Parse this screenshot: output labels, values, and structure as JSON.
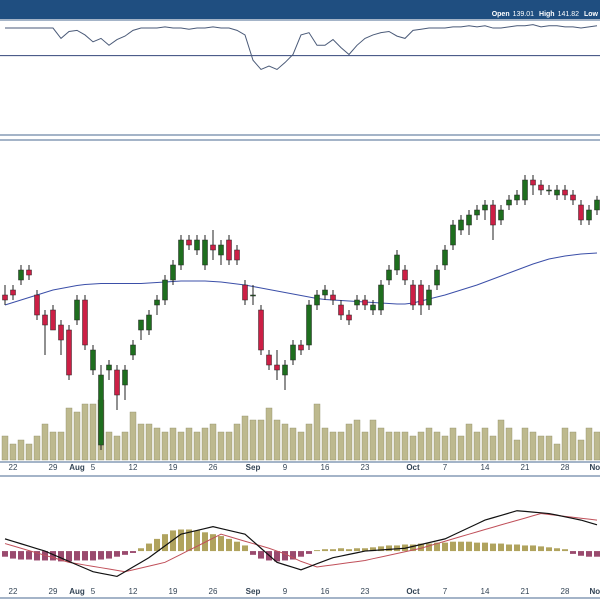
{
  "header": {
    "items": [
      {
        "label": "Open",
        "value": "139.01"
      },
      {
        "label": "High",
        "value": "141.82"
      },
      {
        "label": "Low"
      }
    ]
  },
  "chart_data": [
    {
      "type": "line",
      "color": "#4a5a78",
      "ylim": [
        0,
        100
      ],
      "reference": 69,
      "values": [
        93,
        93,
        93,
        93,
        93,
        93,
        93,
        84,
        90,
        91,
        87,
        81,
        84,
        78,
        83,
        86,
        91,
        93,
        93,
        93,
        94,
        93,
        93,
        92,
        93,
        93,
        94,
        93,
        93,
        91,
        87,
        65,
        57,
        60,
        57,
        63,
        70,
        87,
        89,
        78,
        78,
        83,
        76,
        70,
        78,
        84,
        87,
        89,
        90,
        86,
        84,
        91,
        92,
        93,
        93,
        93,
        94,
        94,
        95,
        94,
        95,
        93,
        93,
        94,
        95,
        95,
        96,
        94,
        95,
        95,
        94,
        94,
        93,
        94,
        95
      ]
    },
    {
      "type": "candlestick",
      "ylim": [
        90,
        152
      ],
      "up_color": "#1e6e1e",
      "down_color": "#cc1f45",
      "categories": [
        null,
        "22",
        null,
        null,
        null,
        null,
        "29",
        null,
        null,
        "Aug",
        null,
        "5",
        null,
        null,
        null,
        null,
        "12",
        null,
        null,
        null,
        null,
        "19",
        null,
        null,
        null,
        null,
        "26",
        null,
        null,
        null,
        null,
        "Sep",
        null,
        null,
        null,
        "9",
        null,
        null,
        null,
        null,
        "16",
        null,
        null,
        null,
        null,
        "23",
        null,
        null,
        null,
        null,
        null,
        "Oct",
        null,
        null,
        null,
        "7",
        null,
        null,
        null,
        null,
        "14",
        null,
        null,
        null,
        null,
        "21",
        null,
        null,
        null,
        null,
        "28",
        null,
        null,
        null,
        "Nov"
      ],
      "open": [
        122,
        123,
        125,
        127,
        122,
        118,
        119,
        116,
        115,
        117,
        121,
        107,
        92,
        107,
        107,
        104,
        110,
        115,
        115,
        120,
        121,
        125,
        128,
        133,
        131,
        128,
        132,
        130,
        133,
        131,
        124,
        122,
        119,
        110,
        108,
        106,
        109,
        112,
        112,
        120,
        122,
        122,
        120,
        118,
        120,
        121,
        119,
        119,
        125,
        127,
        127,
        124,
        124,
        120,
        124,
        128,
        132,
        135,
        136,
        138,
        139,
        140,
        137,
        140,
        141,
        141,
        145,
        144,
        143,
        142,
        143,
        142,
        140,
        137,
        139.01
      ],
      "high": [
        124,
        124,
        128,
        128,
        123,
        119,
        120,
        117,
        116,
        122,
        122,
        112,
        108,
        109,
        108,
        108,
        113,
        117,
        119,
        122,
        126,
        129,
        134,
        134,
        134,
        134,
        135,
        133,
        134,
        132,
        125,
        124,
        120,
        111,
        111,
        109,
        113,
        113,
        121,
        123,
        124,
        123,
        121,
        119,
        122,
        122,
        121,
        125,
        128,
        131,
        128,
        125,
        125,
        124,
        128,
        132,
        137,
        138,
        139,
        140,
        141,
        141,
        140,
        142,
        143,
        146,
        146,
        145,
        144,
        144,
        144,
        143,
        141,
        140,
        141.82
      ],
      "low": [
        120,
        121,
        124,
        125,
        117,
        110,
        115,
        110,
        105,
        116,
        111,
        106,
        91,
        105,
        99,
        101,
        109,
        113,
        114,
        118,
        120,
        124,
        127,
        131,
        130,
        127,
        129,
        128,
        128,
        128,
        120,
        120,
        110,
        107,
        105,
        103,
        108,
        110,
        111,
        119,
        121,
        120,
        117,
        116,
        119,
        119,
        118,
        118,
        124,
        126,
        124,
        119,
        118,
        119,
        123,
        127,
        131,
        134,
        134,
        137,
        137,
        133,
        136,
        139,
        140,
        140,
        142,
        142,
        142,
        141,
        141,
        140,
        136,
        136,
        138
      ],
      "close": [
        121,
        122,
        127,
        126,
        118,
        116,
        115,
        113,
        106,
        121,
        112,
        111,
        106,
        108,
        102,
        107,
        112,
        117,
        118,
        121,
        125,
        128,
        133,
        132,
        133,
        133,
        131,
        132,
        129,
        129,
        121,
        122,
        111,
        108,
        107,
        108,
        112,
        111,
        120,
        122,
        123,
        121,
        118,
        117,
        121,
        120,
        120,
        124,
        127,
        130,
        125,
        120,
        120,
        123,
        127,
        131,
        136,
        137,
        138,
        139,
        140,
        136,
        139,
        141,
        142,
        145,
        144,
        143,
        143,
        143,
        142,
        141,
        137,
        139,
        141
      ],
      "moving_average": {
        "color": "#3b4fa8",
        "values": [
          120,
          120.5,
          121,
          121.5,
          122,
          122.5,
          123,
          123.3,
          123.6,
          123.9,
          124.1,
          124.2,
          124.3,
          124.3,
          124.3,
          124.3,
          124.3,
          124.3,
          124.4,
          124.5,
          124.6,
          124.7,
          124.8,
          124.8,
          124.8,
          124.8,
          124.7,
          124.6,
          124.4,
          124.2,
          124,
          123.7,
          123.4,
          123.1,
          122.8,
          122.5,
          122.2,
          121.9,
          121.6,
          121.3,
          121.1,
          121,
          120.9,
          120.8,
          120.7,
          120.6,
          120.5,
          120.4,
          120.3,
          120.2,
          120.2,
          120.4,
          120.8,
          121.2,
          121.6,
          122,
          122.5,
          123,
          123.5,
          124,
          124.6,
          125.2,
          125.8,
          126.4,
          127,
          127.6,
          128.2,
          128.7,
          129.2,
          129.5,
          129.8,
          130,
          130.2,
          130.3,
          130.4
        ]
      },
      "volume": {
        "color": "#bdb98e",
        "ylim": [
          0,
          100
        ],
        "values": [
          30,
          20,
          25,
          20,
          30,
          45,
          35,
          35,
          65,
          60,
          70,
          70,
          75,
          35,
          30,
          35,
          60,
          45,
          45,
          40,
          35,
          40,
          35,
          40,
          35,
          40,
          45,
          35,
          35,
          45,
          55,
          50,
          50,
          65,
          50,
          45,
          40,
          35,
          45,
          70,
          40,
          35,
          35,
          45,
          50,
          35,
          50,
          40,
          35,
          35,
          35,
          30,
          35,
          40,
          35,
          30,
          40,
          30,
          45,
          35,
          40,
          30,
          50,
          40,
          25,
          40,
          35,
          30,
          30,
          20,
          40,
          35,
          25,
          40,
          35
        ]
      }
    },
    {
      "type": "macd",
      "ylim": [
        -5,
        8
      ],
      "macd": {
        "color": "#111111",
        "values": [
          1.3,
          1.04,
          0.78,
          0.52,
          0.26,
          0,
          -0.37,
          -0.73,
          -1.1,
          -1.47,
          -1.83,
          -2.2,
          -2.37,
          -2.53,
          -2.7,
          -2.2,
          -1.7,
          -1.2,
          -0.7,
          -0.07,
          0.55,
          1.18,
          1.8,
          2,
          2.2,
          2.4,
          2.6,
          2.4,
          2.2,
          2,
          1.8,
          1.05,
          0.3,
          -0.45,
          -1.2,
          -1.47,
          -1.73,
          -2,
          -1.68,
          -1.35,
          -1.03,
          -0.7,
          -0.53,
          -0.35,
          -0.18,
          0,
          0.06,
          0.12,
          0.18,
          0.24,
          0.3,
          0.5,
          0.7,
          0.9,
          1.1,
          1.3,
          1.7,
          2.1,
          2.5,
          2.9,
          3.3,
          3.55,
          3.8,
          4.05,
          4.3,
          4.23,
          4.15,
          4.08,
          4,
          3.83,
          3.65,
          3.48,
          3.3,
          3.05,
          2.8
        ]
      },
      "signal": {
        "color": "#c0505a",
        "values": [
          0.8,
          0.55,
          0.3,
          0.05,
          -0.2,
          -0.45,
          -0.7,
          -0.95,
          -1.2,
          -1.34,
          -1.49,
          -1.63,
          -1.77,
          -1.91,
          -2.06,
          -2.2,
          -2,
          -1.8,
          -1.6,
          -1.4,
          -1.2,
          -0.77,
          -0.34,
          0.09,
          0.51,
          0.94,
          1.37,
          1.8,
          1.55,
          1.3,
          1.05,
          0.8,
          0.55,
          0.3,
          0,
          -0.3,
          -0.7,
          -1.1,
          -1.4,
          -1.7,
          -1.58,
          -1.47,
          -1.35,
          -1.23,
          -1.12,
          -1,
          -0.81,
          -0.63,
          -0.44,
          -0.26,
          -0.07,
          0.11,
          0.3,
          0.55,
          0.8,
          1.05,
          1.3,
          1.55,
          1.8,
          2.05,
          2.3,
          2.54,
          2.79,
          3.03,
          3.27,
          3.51,
          3.76,
          4,
          3.9,
          3.8,
          3.7,
          3.6,
          3.5,
          3.4,
          3.3
        ]
      },
      "histogram": {
        "positive_color": "#b0a35e",
        "negative_color": "#9a4a6e",
        "values": [
          -0.6,
          -0.8,
          -0.9,
          -0.9,
          -1,
          -1,
          -1,
          -1.1,
          -1.1,
          -1,
          -1,
          -1,
          -0.9,
          -0.8,
          -0.6,
          -0.4,
          -0.2,
          0.3,
          0.8,
          1.3,
          1.8,
          2.2,
          2.3,
          2.3,
          2.2,
          2,
          1.8,
          1.6,
          1.3,
          1,
          0.6,
          -0.4,
          -0.8,
          -1,
          -1.1,
          -1,
          -0.9,
          -0.6,
          -0.3,
          0.1,
          0.2,
          0.2,
          0.3,
          0.2,
          0.3,
          0.3,
          0.4,
          0.5,
          0.6,
          0.6,
          0.7,
          0.7,
          0.8,
          0.8,
          0.9,
          0.9,
          1,
          1,
          1,
          0.9,
          0.9,
          0.8,
          0.8,
          0.7,
          0.7,
          0.6,
          0.6,
          0.5,
          0.4,
          0.3,
          0.2,
          -0.3,
          -0.5,
          -0.6,
          -0.6
        ]
      }
    }
  ]
}
